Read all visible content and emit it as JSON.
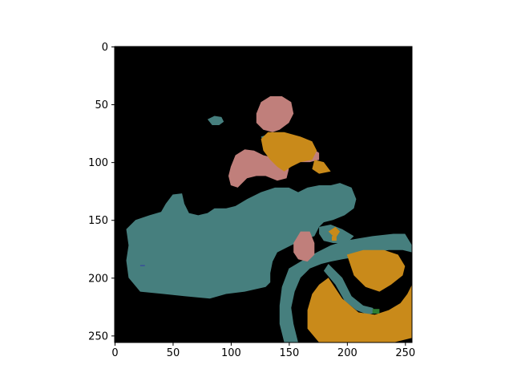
{
  "chart_data": {
    "type": "heatmap",
    "title": "",
    "xlabel": "",
    "ylabel": "",
    "xlim": [
      0,
      256
    ],
    "ylim": [
      256,
      0
    ],
    "y_inverted": true,
    "x_ticks": [
      0,
      50,
      100,
      150,
      200,
      250
    ],
    "y_ticks": [
      0,
      50,
      100,
      150,
      200,
      250
    ],
    "grid": false,
    "legend": "none",
    "colors": {
      "background": "#000000",
      "teal": "#467f7e",
      "pink": "#c07f7b",
      "orange": "#c98a1a",
      "green": "#2e7d32",
      "blue": "#3a4f9a"
    },
    "regions": [
      {
        "label": "teal",
        "color": "teal",
        "polygon": [
          [
            10,
            158
          ],
          [
            18,
            150
          ],
          [
            30,
            146
          ],
          [
            40,
            143
          ],
          [
            44,
            136
          ],
          [
            50,
            128
          ],
          [
            58,
            127
          ],
          [
            60,
            136
          ],
          [
            64,
            144
          ],
          [
            72,
            146
          ],
          [
            80,
            144
          ],
          [
            86,
            140
          ],
          [
            96,
            140
          ],
          [
            104,
            138
          ],
          [
            114,
            132
          ],
          [
            126,
            126
          ],
          [
            138,
            122
          ],
          [
            150,
            122
          ],
          [
            158,
            126
          ],
          [
            166,
            122
          ],
          [
            176,
            120
          ],
          [
            186,
            120
          ],
          [
            194,
            118
          ],
          [
            204,
            122
          ],
          [
            208,
            132
          ],
          [
            206,
            140
          ],
          [
            198,
            146
          ],
          [
            188,
            150
          ],
          [
            180,
            152
          ],
          [
            176,
            156
          ],
          [
            172,
            164
          ],
          [
            166,
            166
          ],
          [
            156,
            170
          ],
          [
            148,
            174
          ],
          [
            140,
            178
          ],
          [
            136,
            186
          ],
          [
            134,
            196
          ],
          [
            134,
            204
          ],
          [
            130,
            208
          ],
          [
            112,
            212
          ],
          [
            96,
            214
          ],
          [
            82,
            218
          ],
          [
            60,
            216
          ],
          [
            42,
            214
          ],
          [
            22,
            212
          ],
          [
            12,
            200
          ],
          [
            10,
            185
          ],
          [
            12,
            172
          ]
        ]
      },
      {
        "label": "teal",
        "color": "teal",
        "polygon": [
          [
            150,
            192
          ],
          [
            160,
            186
          ],
          [
            174,
            178
          ],
          [
            186,
            172
          ],
          [
            198,
            168
          ],
          [
            210,
            166
          ],
          [
            222,
            164
          ],
          [
            240,
            162
          ],
          [
            250,
            162
          ],
          [
            256,
            172
          ],
          [
            256,
            178
          ],
          [
            248,
            176
          ],
          [
            236,
            176
          ],
          [
            222,
            178
          ],
          [
            208,
            182
          ],
          [
            196,
            184
          ],
          [
            186,
            186
          ],
          [
            178,
            188
          ],
          [
            168,
            192
          ],
          [
            160,
            200
          ],
          [
            155,
            212
          ],
          [
            152,
            226
          ],
          [
            154,
            240
          ],
          [
            158,
            256
          ],
          [
            146,
            256
          ],
          [
            142,
            240
          ],
          [
            142,
            224
          ],
          [
            144,
            208
          ]
        ]
      },
      {
        "label": "teal",
        "color": "teal",
        "polygon": [
          [
            184,
            188
          ],
          [
            196,
            200
          ],
          [
            204,
            216
          ],
          [
            214,
            224
          ],
          [
            222,
            226
          ],
          [
            226,
            230
          ],
          [
            218,
            232
          ],
          [
            208,
            228
          ],
          [
            198,
            220
          ],
          [
            190,
            206
          ],
          [
            180,
            194
          ]
        ]
      },
      {
        "label": "teal",
        "color": "teal",
        "polygon": [
          [
            176,
            156
          ],
          [
            186,
            154
          ],
          [
            196,
            158
          ],
          [
            206,
            164
          ],
          [
            200,
            170
          ],
          [
            188,
            170
          ],
          [
            180,
            168
          ],
          [
            176,
            162
          ]
        ]
      },
      {
        "label": "teal",
        "color": "teal",
        "polygon": [
          [
            80,
            63
          ],
          [
            86,
            60
          ],
          [
            92,
            61
          ],
          [
            94,
            65
          ],
          [
            90,
            68
          ],
          [
            84,
            68
          ]
        ]
      },
      {
        "label": "teal",
        "color": "teal",
        "polygon": [
          [
            126,
            78
          ],
          [
            132,
            76
          ],
          [
            136,
            78
          ],
          [
            134,
            82
          ],
          [
            128,
            82
          ]
        ]
      },
      {
        "label": "pink",
        "color": "pink",
        "polygon": [
          [
            122,
            58
          ],
          [
            126,
            48
          ],
          [
            134,
            43
          ],
          [
            144,
            43
          ],
          [
            152,
            48
          ],
          [
            154,
            58
          ],
          [
            150,
            66
          ],
          [
            142,
            72
          ],
          [
            136,
            74
          ],
          [
            128,
            72
          ],
          [
            122,
            66
          ]
        ]
      },
      {
        "label": "pink",
        "color": "pink",
        "polygon": [
          [
            100,
            104
          ],
          [
            104,
            94
          ],
          [
            112,
            89
          ],
          [
            120,
            90
          ],
          [
            128,
            94
          ],
          [
            136,
            96
          ],
          [
            146,
            100
          ],
          [
            150,
            106
          ],
          [
            148,
            114
          ],
          [
            140,
            116
          ],
          [
            130,
            112
          ],
          [
            122,
            112
          ],
          [
            114,
            114
          ],
          [
            106,
            122
          ],
          [
            100,
            120
          ],
          [
            98,
            112
          ]
        ]
      },
      {
        "label": "pink",
        "color": "pink",
        "polygon": [
          [
            156,
            92
          ],
          [
            162,
            87
          ],
          [
            170,
            88
          ],
          [
            176,
            92
          ],
          [
            176,
            98
          ],
          [
            168,
            100
          ],
          [
            160,
            100
          ],
          [
            156,
            98
          ]
        ]
      },
      {
        "label": "pink",
        "color": "pink",
        "polygon": [
          [
            154,
            170
          ],
          [
            160,
            160
          ],
          [
            168,
            160
          ],
          [
            172,
            170
          ],
          [
            172,
            180
          ],
          [
            166,
            186
          ],
          [
            158,
            184
          ],
          [
            154,
            178
          ]
        ]
      },
      {
        "label": "pink",
        "color": "pink",
        "polygon": [
          [
            212,
            250
          ],
          [
            220,
            249
          ],
          [
            222,
            255
          ],
          [
            212,
            255
          ]
        ]
      },
      {
        "label": "orange",
        "color": "orange",
        "polygon": [
          [
            126,
            80
          ],
          [
            132,
            74
          ],
          [
            146,
            74
          ],
          [
            160,
            78
          ],
          [
            170,
            82
          ],
          [
            174,
            90
          ],
          [
            170,
            98
          ],
          [
            160,
            100
          ],
          [
            152,
            104
          ],
          [
            146,
            108
          ],
          [
            140,
            104
          ],
          [
            134,
            98
          ],
          [
            128,
            90
          ]
        ]
      },
      {
        "label": "orange",
        "color": "orange",
        "polygon": [
          [
            172,
            98
          ],
          [
            180,
            100
          ],
          [
            186,
            108
          ],
          [
            176,
            110
          ],
          [
            170,
            106
          ]
        ]
      },
      {
        "label": "orange",
        "color": "orange",
        "polygon": [
          [
            176,
            206
          ],
          [
            184,
            200
          ],
          [
            196,
            218
          ],
          [
            210,
            230
          ],
          [
            224,
            232
          ],
          [
            236,
            228
          ],
          [
            246,
            222
          ],
          [
            252,
            214
          ],
          [
            256,
            206
          ],
          [
            256,
            252
          ],
          [
            240,
            256
          ],
          [
            200,
            256
          ],
          [
            176,
            256
          ],
          [
            166,
            244
          ],
          [
            166,
            228
          ],
          [
            170,
            214
          ]
        ]
      },
      {
        "label": "orange",
        "color": "orange",
        "polygon": [
          [
            200,
            180
          ],
          [
            214,
            176
          ],
          [
            232,
            176
          ],
          [
            244,
            180
          ],
          [
            250,
            190
          ],
          [
            248,
            198
          ],
          [
            238,
            206
          ],
          [
            228,
            212
          ],
          [
            216,
            208
          ],
          [
            206,
            198
          ]
        ]
      },
      {
        "label": "orange",
        "color": "orange",
        "polygon": [
          [
            184,
            160
          ],
          [
            190,
            156
          ],
          [
            194,
            160
          ],
          [
            190,
            166
          ]
        ]
      },
      {
        "label": "orange",
        "color": "orange",
        "polygon": [
          [
            187,
            164
          ],
          [
            191,
            164
          ],
          [
            191,
            168
          ],
          [
            187,
            168
          ]
        ]
      },
      {
        "label": "green",
        "color": "green",
        "polygon": [
          [
            222,
            227
          ],
          [
            228,
            227
          ],
          [
            228,
            231
          ],
          [
            222,
            231
          ]
        ]
      },
      {
        "label": "blue",
        "color": "blue",
        "polygon": [
          [
            22,
            189
          ],
          [
            26,
            189
          ],
          [
            26,
            190
          ],
          [
            22,
            190
          ]
        ]
      }
    ]
  }
}
